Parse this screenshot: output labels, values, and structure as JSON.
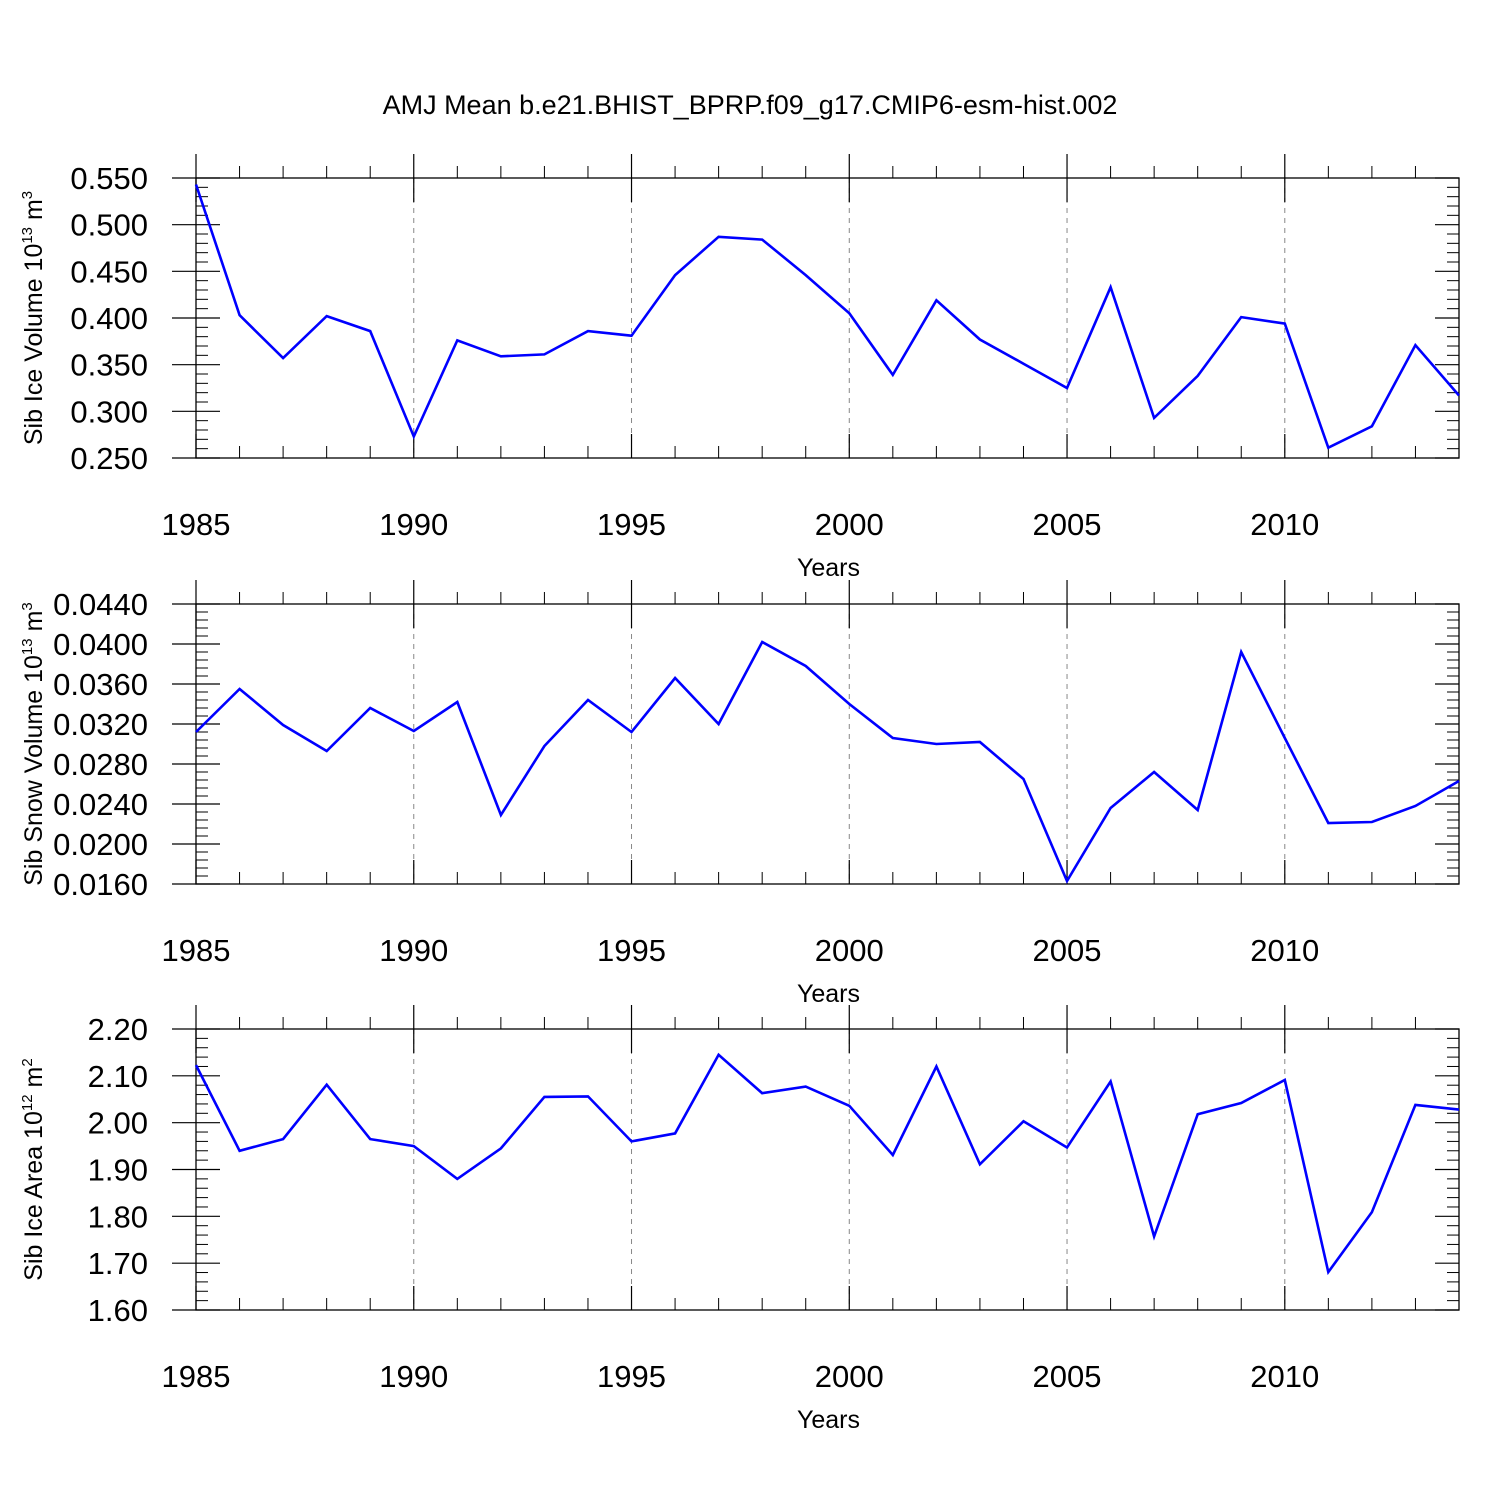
{
  "figure_title": "AMJ Mean b.e21.BHIST_BPRP.f09_g17.CMIP6-esm-hist.002",
  "colors": {
    "line": "#0000ff",
    "axis": "#000000",
    "grid": "#888888"
  },
  "chart_data": [
    {
      "type": "line",
      "ylabel": {
        "text": "Sib Ice Volume 10",
        "exp": "13",
        "unit": " m",
        "unit_exp": "3"
      },
      "xlabel": "Years",
      "xlim": [
        1985,
        2014
      ],
      "x_ticks": [
        "1985",
        "1990",
        "1995",
        "2000",
        "2005",
        "2010"
      ],
      "ylim": [
        0.25,
        0.55
      ],
      "y_ticks": [
        "0.250",
        "0.300",
        "0.350",
        "0.400",
        "0.450",
        "0.500",
        "0.550"
      ],
      "grid": "vertical dashed at major x ticks",
      "series": [
        {
          "name": "Sib Ice Volume",
          "x": [
            1985,
            1986,
            1987,
            1988,
            1989,
            1990,
            1991,
            1992,
            1993,
            1994,
            1995,
            1996,
            1997,
            1998,
            1999,
            2000,
            2001,
            2002,
            2003,
            2004,
            2005,
            2006,
            2007,
            2008,
            2009,
            2010,
            2011,
            2012,
            2013,
            2014
          ],
          "values": [
            0.543,
            0.403,
            0.357,
            0.402,
            0.386,
            0.273,
            0.376,
            0.359,
            0.361,
            0.386,
            0.381,
            0.446,
            0.487,
            0.484,
            0.446,
            0.405,
            0.339,
            0.419,
            0.377,
            0.351,
            0.325,
            0.433,
            0.293,
            0.338,
            0.401,
            0.394,
            0.261,
            0.284,
            0.371,
            0.317
          ]
        }
      ]
    },
    {
      "type": "line",
      "ylabel": {
        "text": "Sib Snow Volume 10",
        "exp": "13",
        "unit": " m",
        "unit_exp": "3"
      },
      "xlabel": "Years",
      "xlim": [
        1985,
        2014
      ],
      "x_ticks": [
        "1985",
        "1990",
        "1995",
        "2000",
        "2005",
        "2010"
      ],
      "ylim": [
        0.016,
        0.044
      ],
      "y_ticks": [
        "0.0160",
        "0.0200",
        "0.0240",
        "0.0280",
        "0.0320",
        "0.0360",
        "0.0400",
        "0.0440"
      ],
      "grid": "vertical dashed at major x ticks",
      "series": [
        {
          "name": "Sib Snow Volume",
          "x": [
            1985,
            1986,
            1987,
            1988,
            1989,
            1990,
            1991,
            1992,
            1993,
            1994,
            1995,
            1996,
            1997,
            1998,
            1999,
            2000,
            2001,
            2002,
            2003,
            2004,
            2005,
            2006,
            2007,
            2008,
            2009,
            2010,
            2011,
            2012,
            2013,
            2014
          ],
          "values": [
            0.0312,
            0.0355,
            0.0319,
            0.0293,
            0.0336,
            0.0313,
            0.0342,
            0.0229,
            0.0298,
            0.0344,
            0.0312,
            0.0366,
            0.032,
            0.0402,
            0.0378,
            0.034,
            0.0306,
            0.03,
            0.0302,
            0.0265,
            0.0163,
            0.0236,
            0.0272,
            0.0234,
            0.0392,
            0.0306,
            0.0221,
            0.0222,
            0.0238,
            0.0263
          ]
        }
      ]
    },
    {
      "type": "line",
      "ylabel": {
        "text": "Sib Ice Area 10",
        "exp": "12",
        "unit": " m",
        "unit_exp": "2"
      },
      "xlabel": "Years",
      "xlim": [
        1985,
        2014
      ],
      "x_ticks": [
        "1985",
        "1990",
        "1995",
        "2000",
        "2005",
        "2010"
      ],
      "ylim": [
        1.6,
        2.2
      ],
      "y_ticks": [
        "1.60",
        "1.70",
        "1.80",
        "1.90",
        "2.00",
        "2.10",
        "2.20"
      ],
      "grid": "vertical dashed at major x ticks",
      "series": [
        {
          "name": "Sib Ice Area",
          "x": [
            1985,
            1986,
            1987,
            1988,
            1989,
            1990,
            1991,
            1992,
            1993,
            1994,
            1995,
            1996,
            1997,
            1998,
            1999,
            2000,
            2001,
            2002,
            2003,
            2004,
            2005,
            2006,
            2007,
            2008,
            2009,
            2010,
            2011,
            2012,
            2013,
            2014
          ],
          "values": [
            2.123,
            1.94,
            1.965,
            2.081,
            1.965,
            1.95,
            1.88,
            1.945,
            2.055,
            2.056,
            1.96,
            1.977,
            2.145,
            2.063,
            2.077,
            2.036,
            1.931,
            2.12,
            1.911,
            2.003,
            1.947,
            2.088,
            1.757,
            2.018,
            2.042,
            2.091,
            1.681,
            1.809,
            2.038,
            2.028
          ]
        }
      ]
    }
  ]
}
